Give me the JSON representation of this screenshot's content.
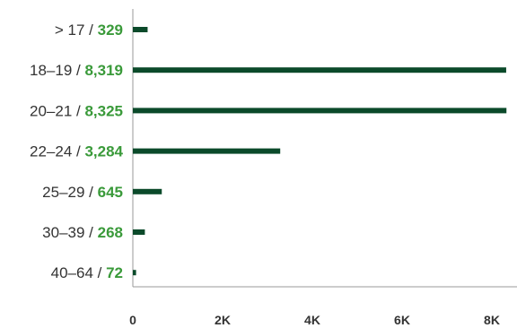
{
  "chart_data": {
    "type": "bar",
    "orientation": "horizontal",
    "categories": [
      "> 17",
      "18–19",
      "20–21",
      "22–24",
      "25–29",
      "30–39",
      "40–64"
    ],
    "values": [
      329,
      8319,
      8325,
      3284,
      645,
      268,
      72
    ],
    "value_labels": [
      "329",
      "8,319",
      "8,325",
      "3,284",
      "645",
      "268",
      "72"
    ],
    "x_ticks": [
      0,
      2000,
      4000,
      6000,
      8000
    ],
    "x_tick_labels": [
      "0",
      "2K",
      "4K",
      "6K",
      "8K"
    ],
    "xlim": [
      0,
      8500
    ],
    "grid": false,
    "legend": "none",
    "colors": {
      "bar": "#0b4a2a",
      "axis": "#999999",
      "label_text": "#333333",
      "value_text": "#3a9a3a"
    }
  }
}
